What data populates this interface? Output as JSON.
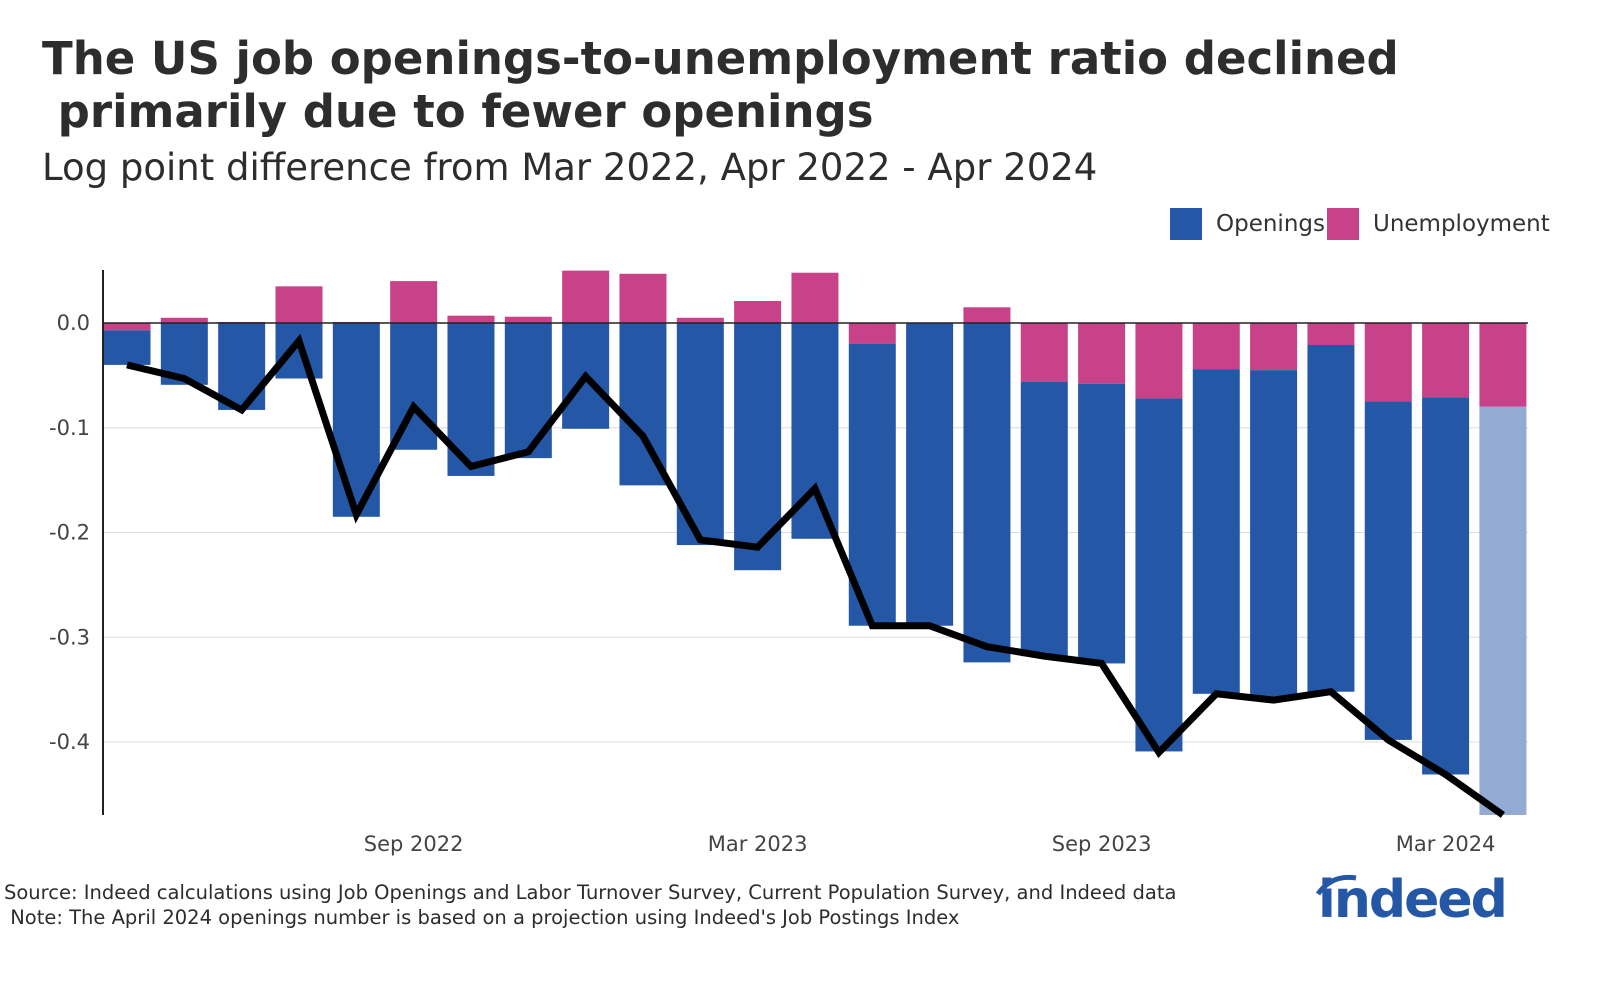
{
  "title": "The US job openings-to-unemployment ratio declined\n primarily due to fewer openings",
  "subtitle": "Log point difference from Mar 2022, Apr 2022 - Apr 2024",
  "legend": [
    {
      "label": "Openings",
      "color": "#2557a7"
    },
    {
      "label": "Unemployment",
      "color": "#c74289"
    }
  ],
  "source": "Source: Indeed calculations using Job Openings and Labor Turnover Survey, Current Population Survey, and Indeed data",
  "note": " Note: The April 2024 openings number is based on a projection using Indeed's Job Postings Index",
  "logo_text": "indeed",
  "chart_data": {
    "type": "bar",
    "stacked": true,
    "categories": [
      "Apr 2022",
      "May 2022",
      "Jun 2022",
      "Jul 2022",
      "Aug 2022",
      "Sep 2022",
      "Oct 2022",
      "Nov 2022",
      "Dec 2022",
      "Jan 2023",
      "Feb 2023",
      "Mar 2023",
      "Apr 2023",
      "May 2023",
      "Jun 2023",
      "Jul 2023",
      "Aug 2023",
      "Sep 2023",
      "Oct 2023",
      "Nov 2023",
      "Dec 2023",
      "Jan 2024",
      "Feb 2024",
      "Mar 2024",
      "Apr 2024"
    ],
    "series": [
      {
        "name": "Openings",
        "color": "#2557a7",
        "projected_color": "#92aad4",
        "values": [
          -0.033,
          -0.059,
          -0.083,
          -0.053,
          -0.185,
          -0.121,
          -0.146,
          -0.129,
          -0.101,
          -0.155,
          -0.212,
          -0.236,
          -0.206,
          -0.269,
          -0.289,
          -0.324,
          -0.262,
          -0.267,
          -0.337,
          -0.31,
          -0.315,
          -0.331,
          -0.323,
          -0.36,
          -0.395
        ]
      },
      {
        "name": "Unemployment",
        "color": "#c74289",
        "values": [
          -0.007,
          0.005,
          0.001,
          0.035,
          0.001,
          0.04,
          0.007,
          0.006,
          0.05,
          0.047,
          0.005,
          0.021,
          0.048,
          -0.02,
          0.0,
          0.015,
          -0.056,
          -0.058,
          -0.072,
          -0.044,
          -0.045,
          -0.021,
          -0.075,
          -0.071,
          -0.08
        ]
      },
      {
        "type": "line",
        "color": "#000000",
        "values": [
          -0.04,
          -0.053,
          -0.083,
          -0.017,
          -0.183,
          -0.08,
          -0.137,
          -0.123,
          -0.051,
          -0.108,
          -0.207,
          -0.214,
          -0.158,
          -0.289,
          -0.289,
          -0.309,
          -0.318,
          -0.325,
          -0.41,
          -0.354,
          -0.36,
          -0.352,
          -0.398,
          -0.431,
          -0.47
        ]
      }
    ],
    "projected_categories": [
      "Apr 2024"
    ],
    "y_ticks": [
      "0.0",
      "-0.1",
      "-0.2",
      "-0.3",
      "-0.4"
    ],
    "y_tick_values": [
      0,
      -0.1,
      -0.2,
      -0.3,
      -0.4
    ],
    "x_ticks": [
      "Sep 2022",
      "Mar 2023",
      "Sep 2023",
      "Mar 2024"
    ],
    "ylim": [
      -0.47,
      0.05
    ],
    "grid": "horizontal",
    "legend_position": "top-right"
  }
}
